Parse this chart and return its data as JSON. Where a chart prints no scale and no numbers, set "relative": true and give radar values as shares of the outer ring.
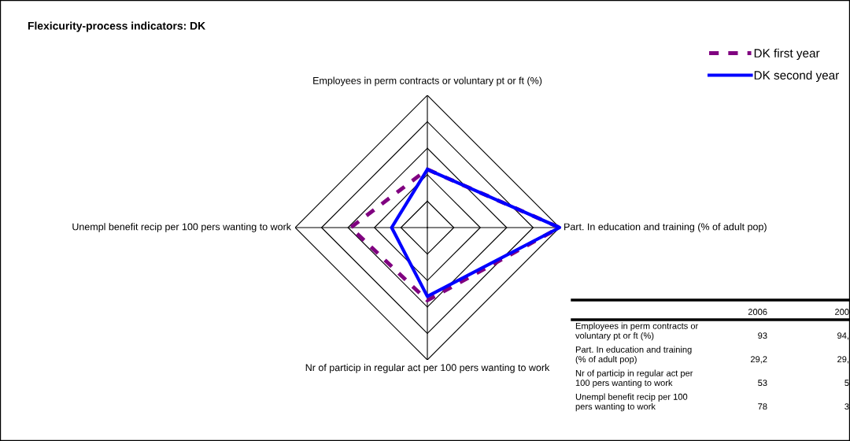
{
  "chart_data": [
    {
      "type": "radar",
      "title": "Flexicurity-process indicators: DK",
      "relative": true,
      "categories": [
        "Employees in perm contracts or voluntary pt or ft (%)",
        "Part. In education and training (% of adult pop)",
        "Nr of particip in regular act per 100 pers wanting to work",
        "Unempl benefit recip per 100 pers wanting to work"
      ],
      "series": [
        {
          "name": "DK first year",
          "color": "#800080",
          "line_style": "dashed",
          "values": [
            0.44,
            1.0,
            0.55,
            0.58
          ]
        },
        {
          "name": "DK second year",
          "color": "#0000ff",
          "line_style": "solid",
          "values": [
            0.44,
            1.0,
            0.52,
            0.27
          ]
        }
      ],
      "legend": "top right",
      "marker": "none"
    },
    {
      "type": "other",
      "annotations": [
        "2006",
        "200",
        "Employees in perm contracts or\nvoluntary pt or ft (%)",
        "93",
        "94,",
        "Part. In education and training\n(% of adult pop)",
        "29,2",
        "29,",
        "Nr of particip in regular act per\n100 pers wanting to work",
        "53",
        "5",
        "Unempl benefit recip per 100\npers wanting to work",
        "78",
        "3"
      ]
    }
  ]
}
